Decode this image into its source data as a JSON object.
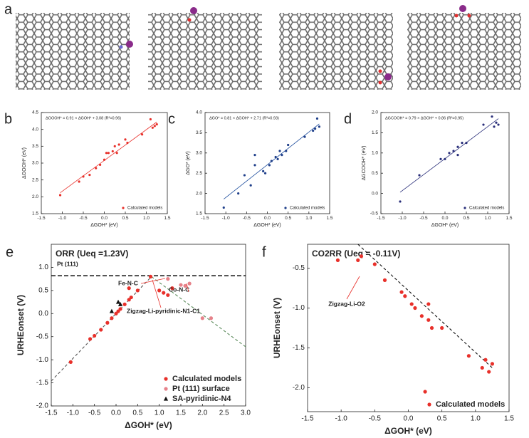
{
  "panel_a": {
    "label": "a"
  },
  "chart_data": [
    {
      "type": "scatter",
      "label": "b",
      "title": "ΔGOOH* = 0.91 × ΔGOH* + 3.08 (R²=0.96)",
      "title_color": "#e8302a",
      "xlabel": "ΔGOH* (eV)",
      "ylabel": "ΔGOOH* (eV)",
      "xlim": [
        -1.5,
        1.5
      ],
      "ylim": [
        1.5,
        4.5
      ],
      "xticks": [
        -1.5,
        {
          "value": -1,
          "label": "-1.0"
        },
        -0.5,
        {
          "value": 0,
          "label": "0.0"
        },
        0.5,
        {
          "value": 1,
          "label": "1.0"
        },
        1.5
      ],
      "yticks": [
        1.5,
        {
          "value": 2,
          "label": "2.0"
        },
        2.5,
        {
          "value": 3,
          "label": "3.0"
        },
        3.5,
        {
          "value": 4,
          "label": "4.0"
        },
        4.5
      ],
      "legend": "lower right",
      "series": [
        {
          "name": "Calculated models",
          "color": "#e8302a",
          "marker": "circle",
          "x": [
            -1.05,
            -0.6,
            -0.5,
            -0.35,
            -0.2,
            -0.1,
            0.0,
            0.05,
            0.1,
            0.2,
            0.25,
            0.3,
            0.35,
            0.5,
            0.55,
            0.9,
            1.1,
            1.15,
            1.2,
            1.25
          ],
          "values": [
            2.05,
            2.45,
            2.6,
            2.65,
            2.85,
            2.95,
            3.1,
            3.3,
            3.3,
            3.35,
            3.5,
            3.3,
            3.55,
            3.7,
            3.6,
            3.85,
            4.3,
            4.05,
            4.1,
            4.15
          ]
        }
      ],
      "lines": [
        {
          "x": [
            -1.05,
            1.25
          ],
          "values": [
            2.12,
            4.22
          ],
          "color": "#e8302a",
          "style": "solid"
        }
      ]
    },
    {
      "type": "scatter",
      "label": "c",
      "title": "ΔGO* = 0.81 × ΔGOH* + 2.71 (R²=0.93)",
      "title_color": "#1a4a9c",
      "xlabel": "ΔGOH* (eV)",
      "ylabel": "ΔGO* (eV)",
      "xlim": [
        -1.5,
        1.5
      ],
      "ylim": [
        1.5,
        4.0
      ],
      "xticks": [
        -1.5,
        {
          "value": -1,
          "label": "-1.0"
        },
        -0.5,
        {
          "value": 0,
          "label": "0.0"
        },
        0.5,
        {
          "value": 1,
          "label": "1.0"
        },
        1.5
      ],
      "yticks": [
        1.5,
        {
          "value": 2,
          "label": "2.0"
        },
        2.5,
        {
          "value": 3,
          "label": "3.0"
        },
        3.5,
        {
          "value": 4,
          "label": "4.0"
        }
      ],
      "legend": "lower right",
      "series": [
        {
          "name": "Calculated models",
          "color": "#1f3f8a",
          "marker": "circle",
          "x": [
            -1.05,
            -0.7,
            -0.55,
            -0.4,
            -0.3,
            -0.3,
            -0.1,
            -0.05,
            0.05,
            0.1,
            0.2,
            0.25,
            0.3,
            0.35,
            0.45,
            0.5,
            0.9,
            1.1,
            1.15,
            1.2,
            1.25
          ],
          "values": [
            1.65,
            2.0,
            2.45,
            2.2,
            2.95,
            2.7,
            2.55,
            2.5,
            2.7,
            2.8,
            2.9,
            2.85,
            3.05,
            2.95,
            3.05,
            3.2,
            3.4,
            3.55,
            3.6,
            3.85,
            3.65
          ]
        }
      ],
      "lines": [
        {
          "x": [
            -1.05,
            1.25
          ],
          "values": [
            1.86,
            3.72
          ],
          "color": "#1a4a9c",
          "style": "solid"
        }
      ]
    },
    {
      "type": "scatter",
      "label": "d",
      "title": "ΔGCOOH* = 0.79 × ΔGOH* + 0.86 (R²=0.95)",
      "title_color": "#2a2f7a",
      "xlabel": "ΔGOH* (eV)",
      "ylabel": "ΔGCOOH* (eV)",
      "xlim": [
        -1.5,
        1.5
      ],
      "ylim": [
        -0.5,
        2.0
      ],
      "xticks": [
        -1.5,
        {
          "value": -1,
          "label": "-1.0"
        },
        -0.5,
        {
          "value": 0,
          "label": "0.0"
        },
        0.5,
        {
          "value": 1,
          "label": "1.0"
        },
        1.5
      ],
      "yticks": [
        -0.5,
        {
          "value": 0,
          "label": "0.0"
        },
        0.5,
        {
          "value": 1,
          "label": "1.0"
        },
        1.5,
        {
          "value": 2,
          "label": "2.0"
        }
      ],
      "legend": "lower right",
      "series": [
        {
          "name": "Calculated models",
          "color": "#2a2f7a",
          "marker": "circle",
          "x": [
            -1.05,
            -0.6,
            -0.1,
            0.0,
            0.1,
            0.2,
            0.3,
            0.3,
            0.4,
            0.5,
            0.9,
            1.1,
            1.15,
            1.2,
            1.25
          ],
          "values": [
            -0.2,
            0.45,
            0.85,
            0.85,
            1.0,
            1.05,
            1.15,
            0.95,
            1.25,
            1.25,
            1.7,
            1.9,
            1.65,
            1.75,
            1.7
          ]
        }
      ],
      "lines": [
        {
          "x": [
            -1.05,
            1.25
          ],
          "values": [
            0.03,
            1.85
          ],
          "color": "#2a2f7a",
          "style": "solid"
        }
      ]
    },
    {
      "type": "scatter",
      "label": "e",
      "title": "ORR (Ueq =1.23V)",
      "title_color": "#111",
      "xlabel": "ΔGOH* (eV)",
      "ylabel": "URHEonset (V)",
      "xlim": [
        -1.5,
        3.0
      ],
      "ylim": [
        -2.0,
        1.5
      ],
      "xticks": [
        -1.5,
        {
          "value": -1,
          "label": "-1.0"
        },
        -0.5,
        {
          "value": 0,
          "label": "0.0"
        },
        0.5,
        {
          "value": 1,
          "label": "1.0"
        },
        1.5,
        {
          "value": 2,
          "label": "2.0"
        },
        2.5,
        {
          "value": 3,
          "label": "3.0"
        }
      ],
      "yticks": [
        {
          "value": -2,
          "label": "-2.0"
        },
        -1.5,
        {
          "value": -1,
          "label": "-1.0"
        },
        -0.5,
        {
          "value": 0,
          "label": "0.0"
        },
        0.5,
        {
          "value": 1,
          "label": "1.0"
        }
      ],
      "legend": "lower right",
      "hline": {
        "value": 0.82,
        "color": "#111"
      },
      "series": [
        {
          "name": "Calculated models",
          "color": "#e8302a",
          "marker": "circle",
          "x": [
            -1.05,
            -0.6,
            -0.5,
            -0.35,
            -0.2,
            -0.1,
            0.0,
            0.05,
            0.1,
            0.2,
            0.3,
            0.35,
            0.5,
            0.8,
            1.0,
            1.1,
            1.2,
            1.3,
            0.3
          ],
          "values": [
            -1.05,
            -0.55,
            -0.48,
            -0.35,
            -0.2,
            -0.1,
            0.0,
            0.05,
            0.1,
            0.2,
            0.3,
            0.35,
            0.5,
            0.8,
            0.5,
            0.45,
            0.4,
            0.55,
            0.55
          ]
        },
        {
          "name": "Pt (111) surface",
          "color": "#e6828a",
          "marker": "circle",
          "x": [
            1.2,
            1.5,
            1.6,
            1.7,
            2.0,
            2.2
          ],
          "values": [
            0.75,
            0.62,
            0.6,
            0.65,
            -0.1,
            -0.1
          ]
        },
        {
          "name": "SA-pyridinic-N4",
          "color": "#111",
          "marker": "triangle",
          "x": [
            -0.1,
            0.05,
            0.1
          ],
          "values": [
            0.05,
            0.25,
            0.2
          ]
        }
      ],
      "lines": [
        {
          "x": [
            -1.5,
            0.82
          ],
          "values": [
            -1.46,
            0.8
          ],
          "color": "#555",
          "style": "dashed"
        },
        {
          "x": [
            0.82,
            3.0
          ],
          "values": [
            0.8,
            -0.72
          ],
          "color": "#5a8a5a",
          "style": "dashed"
        }
      ],
      "annotations": [
        {
          "text": "Pt (111)",
          "color": "#111"
        },
        {
          "text": "Fe-N-C",
          "color": "#8b1a1a"
        },
        {
          "text": "Co-N-C",
          "color": "#1a8a8a"
        },
        {
          "text": "Zigzag-Li-pyridinic-N1-C1",
          "color": "#e8302a"
        }
      ]
    },
    {
      "type": "scatter",
      "label": "f",
      "title": "CO2RR (Ueq = -0.11V)",
      "title_color": "#111",
      "xlabel": "ΔGOH* (eV)",
      "ylabel": "URHEonset (V)",
      "xlim": [
        -1.5,
        1.5
      ],
      "ylim": [
        -2.3,
        -0.2
      ],
      "xticks": [
        -1.5,
        {
          "value": -1,
          "label": "-1.0"
        },
        -0.5,
        {
          "value": 0,
          "label": "0.0"
        },
        0.5,
        {
          "value": 1,
          "label": "1.0"
        },
        1.5
      ],
      "yticks": [
        {
          "value": -2,
          "label": "-2.0"
        },
        -1.5,
        {
          "value": -1,
          "label": "-1.0"
        },
        -0.5
      ],
      "legend": "lower right",
      "series": [
        {
          "name": "Calculated models",
          "color": "#e8302a",
          "marker": "circle",
          "x": [
            -1.05,
            -0.7,
            -0.75,
            -0.5,
            -0.35,
            -0.1,
            -0.05,
            0.05,
            0.1,
            0.2,
            0.3,
            0.3,
            0.35,
            0.5,
            0.9,
            1.1,
            1.15,
            1.2,
            1.25,
            0.25
          ],
          "values": [
            -0.4,
            -0.35,
            -0.4,
            -0.45,
            -0.65,
            -0.8,
            -0.85,
            -0.95,
            -1.0,
            -1.1,
            -0.95,
            -1.15,
            -1.25,
            -1.25,
            -1.6,
            -1.75,
            -1.65,
            -1.8,
            -1.7,
            -2.05
          ]
        }
      ],
      "lines": [
        {
          "x": [
            -0.75,
            1.25
          ],
          "values": [
            -0.2,
            -1.75
          ],
          "color": "#111",
          "style": "dashed"
        }
      ],
      "annotations": [
        {
          "text": "Zigzag-Li-O2",
          "color": "#e8302a"
        }
      ]
    }
  ]
}
